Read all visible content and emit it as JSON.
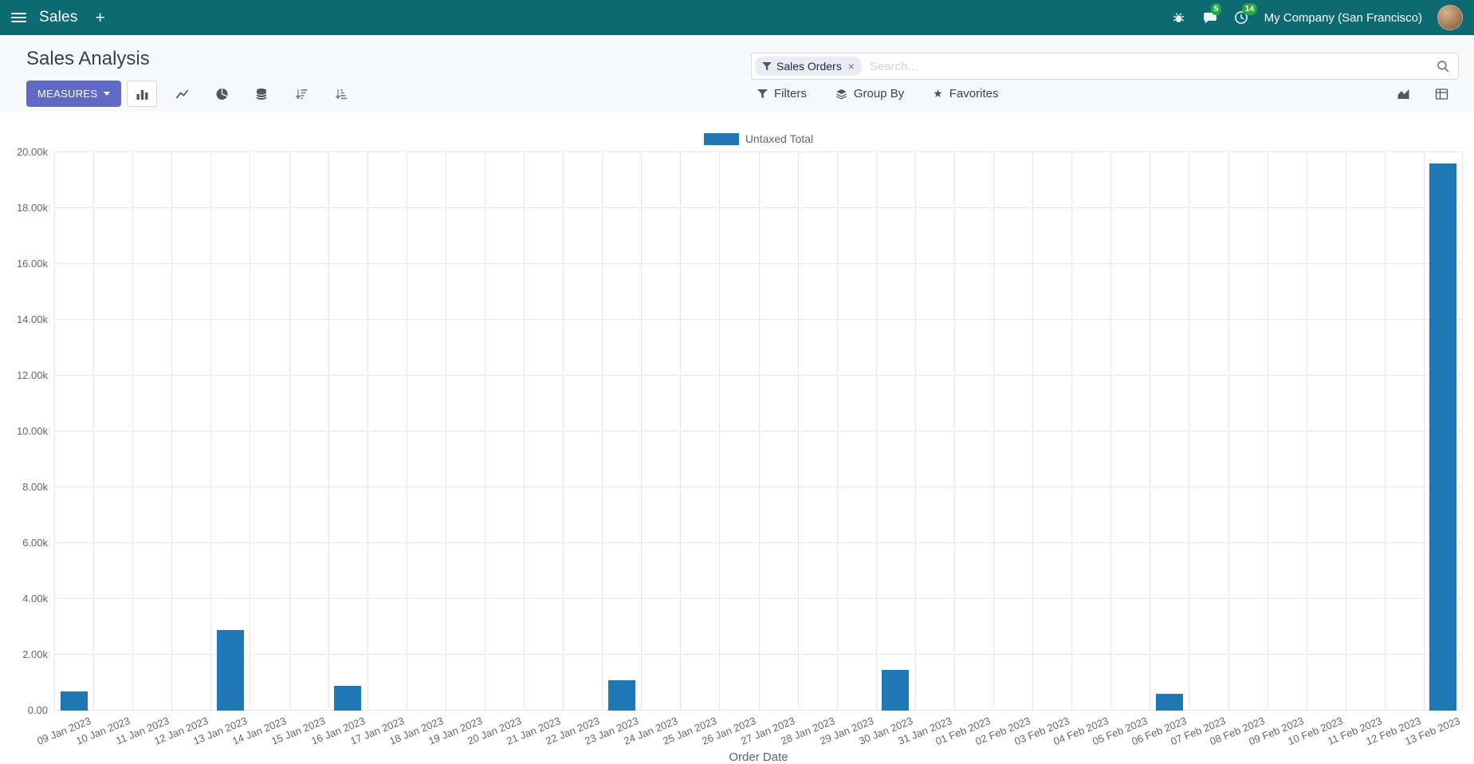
{
  "navbar": {
    "app_name": "Sales",
    "plus_label": "+",
    "messages_badge": "5",
    "activities_badge": "14",
    "company": "My Company (San Francisco)"
  },
  "control_panel": {
    "title": "Sales Analysis",
    "search": {
      "facet_label": "Sales Orders",
      "facet_remove": "×",
      "placeholder": "Search..."
    },
    "measures_label": "MEASURES",
    "filters_label": "Filters",
    "group_by_label": "Group By",
    "favorites_label": "Favorites"
  },
  "chart_data": {
    "type": "bar",
    "title": "",
    "legend_position": "top",
    "grid": true,
    "xlabel": "Order Date",
    "ylabel": "",
    "ylim": [
      0,
      20000
    ],
    "ytick_labels": [
      "0.00",
      "2.00k",
      "4.00k",
      "6.00k",
      "8.00k",
      "10.00k",
      "12.00k",
      "14.00k",
      "16.00k",
      "18.00k",
      "20.00k"
    ],
    "categories": [
      "09 Jan 2023",
      "10 Jan 2023",
      "11 Jan 2023",
      "12 Jan 2023",
      "13 Jan 2023",
      "14 Jan 2023",
      "15 Jan 2023",
      "16 Jan 2023",
      "17 Jan 2023",
      "18 Jan 2023",
      "19 Jan 2023",
      "20 Jan 2023",
      "21 Jan 2023",
      "22 Jan 2023",
      "23 Jan 2023",
      "24 Jan 2023",
      "25 Jan 2023",
      "26 Jan 2023",
      "27 Jan 2023",
      "28 Jan 2023",
      "29 Jan 2023",
      "30 Jan 2023",
      "31 Jan 2023",
      "01 Feb 2023",
      "02 Feb 2023",
      "03 Feb 2023",
      "04 Feb 2023",
      "05 Feb 2023",
      "06 Feb 2023",
      "07 Feb 2023",
      "08 Feb 2023",
      "09 Feb 2023",
      "10 Feb 2023",
      "11 Feb 2023",
      "12 Feb 2023",
      "13 Feb 2023"
    ],
    "series": [
      {
        "name": "Untaxed Total",
        "color": "#1f77b4",
        "values": [
          700,
          0,
          0,
          0,
          2900,
          0,
          0,
          900,
          0,
          0,
          0,
          0,
          0,
          0,
          1100,
          0,
          0,
          0,
          0,
          0,
          0,
          1450,
          0,
          0,
          0,
          0,
          0,
          0,
          600,
          0,
          0,
          0,
          0,
          0,
          0,
          19600
        ]
      }
    ]
  },
  "colors": {
    "navbar_bg": "#0e6a72",
    "primary_button": "#5f6ac4",
    "bar": "#1f77b4",
    "badge_green": "#28a745"
  }
}
